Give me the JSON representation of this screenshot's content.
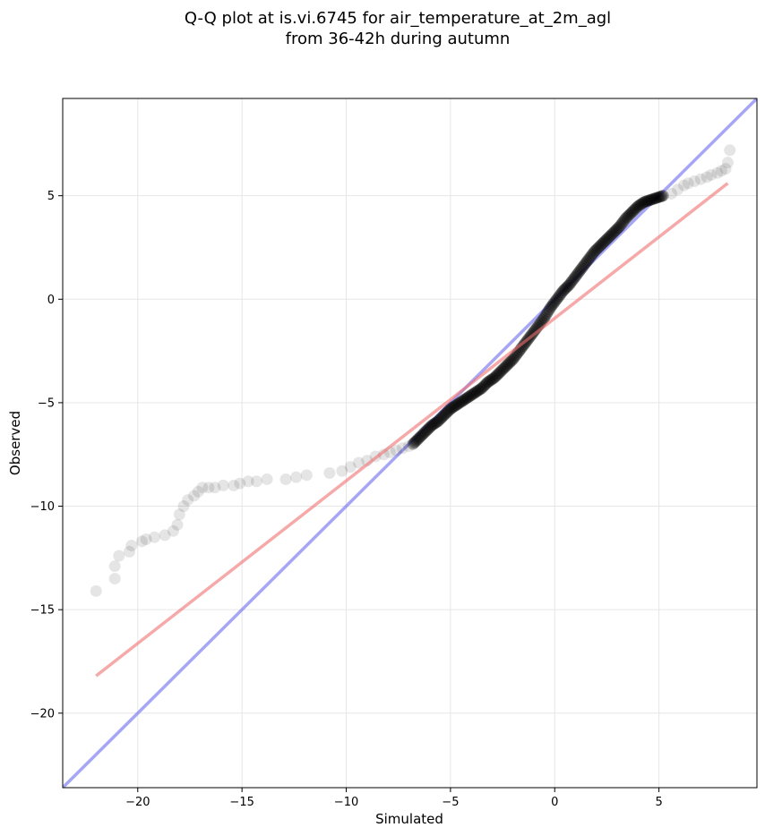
{
  "chart_data": {
    "type": "scatter",
    "title_line1": "Q-Q plot at is.vi.6745 for air_temperature_at_2m_agl",
    "title_line2": "from 36-42h during autumn",
    "xlabel": "Simulated",
    "ylabel": "Observed",
    "xlim": [
      -23.6,
      9.7
    ],
    "ylim": [
      -23.6,
      9.7
    ],
    "xticks": [
      -20,
      -15,
      -10,
      -5,
      0,
      5
    ],
    "yticks": [
      -20,
      -15,
      -10,
      -5,
      0,
      5
    ],
    "xtick_labels": [
      "−20",
      "−15",
      "−10",
      "−5",
      "0",
      "5"
    ],
    "ytick_labels": [
      "−20",
      "−15",
      "−10",
      "−5",
      "0",
      "5"
    ],
    "grid": true,
    "colors": {
      "points": "#000000",
      "identity_line": "#6b6bf0",
      "fit_line": "#f07070",
      "grid": "#e6e6e6"
    },
    "identity_line": {
      "x": [
        -23.6,
        9.7
      ],
      "y": [
        -23.6,
        9.7
      ]
    },
    "fit_line": {
      "x": [
        -22.0,
        8.3
      ],
      "y": [
        -18.2,
        5.6
      ]
    },
    "tail_points": {
      "x": [
        -22.0,
        -21.1,
        -21.1,
        -20.9,
        -20.4,
        -20.3,
        -19.8,
        -19.6,
        -19.2,
        -18.7,
        -18.3,
        -18.1,
        -18.0,
        -17.8,
        -17.6,
        -17.3,
        -17.1,
        -16.9,
        -16.6,
        -16.3,
        -15.9,
        -15.4,
        -15.1,
        -14.7,
        -14.3,
        -13.8,
        -12.9,
        -12.4,
        -11.9,
        -10.8,
        -10.2,
        -9.8,
        -9.4,
        -9.0,
        -8.6,
        -8.2,
        -7.9,
        -7.6,
        -7.3,
        -7.0,
        5.6,
        5.9,
        6.2,
        6.4,
        6.7,
        7.0,
        7.3,
        7.5,
        7.8,
        8.0,
        8.2,
        8.3,
        8.4
      ],
      "y": [
        -14.1,
        -13.5,
        -12.9,
        -12.4,
        -12.2,
        -11.9,
        -11.7,
        -11.6,
        -11.5,
        -11.4,
        -11.2,
        -10.9,
        -10.4,
        -10.0,
        -9.7,
        -9.5,
        -9.3,
        -9.1,
        -9.1,
        -9.1,
        -9.0,
        -9.0,
        -8.9,
        -8.8,
        -8.8,
        -8.7,
        -8.7,
        -8.6,
        -8.5,
        -8.4,
        -8.3,
        -8.1,
        -7.9,
        -7.8,
        -7.6,
        -7.5,
        -7.4,
        -7.3,
        -7.2,
        -7.1,
        5.1,
        5.3,
        5.5,
        5.6,
        5.7,
        5.8,
        5.9,
        6.0,
        6.1,
        6.2,
        6.3,
        6.6,
        7.2
      ]
    },
    "body_points": {
      "x": [
        -6.8,
        -6.5,
        -6.2,
        -5.9,
        -5.6,
        -5.3,
        -5.0,
        -4.7,
        -4.4,
        -4.1,
        -3.8,
        -3.5,
        -3.2,
        -2.9,
        -2.6,
        -2.3,
        -2.0,
        -1.7,
        -1.4,
        -1.1,
        -0.8,
        -0.5,
        -0.2,
        0.1,
        0.4,
        0.7,
        1.0,
        1.3,
        1.6,
        1.9,
        2.2,
        2.5,
        2.8,
        3.1,
        3.4,
        3.7,
        4.0,
        4.3,
        4.6,
        4.9,
        5.2
      ],
      "y": [
        -7.0,
        -6.7,
        -6.4,
        -6.1,
        -5.9,
        -5.6,
        -5.3,
        -5.1,
        -4.9,
        -4.7,
        -4.5,
        -4.3,
        -4.0,
        -3.8,
        -3.5,
        -3.2,
        -2.9,
        -2.5,
        -2.1,
        -1.7,
        -1.3,
        -0.9,
        -0.4,
        0.0,
        0.4,
        0.7,
        1.1,
        1.5,
        1.9,
        2.3,
        2.6,
        2.9,
        3.2,
        3.5,
        3.9,
        4.2,
        4.5,
        4.7,
        4.8,
        4.9,
        5.0
      ]
    }
  }
}
